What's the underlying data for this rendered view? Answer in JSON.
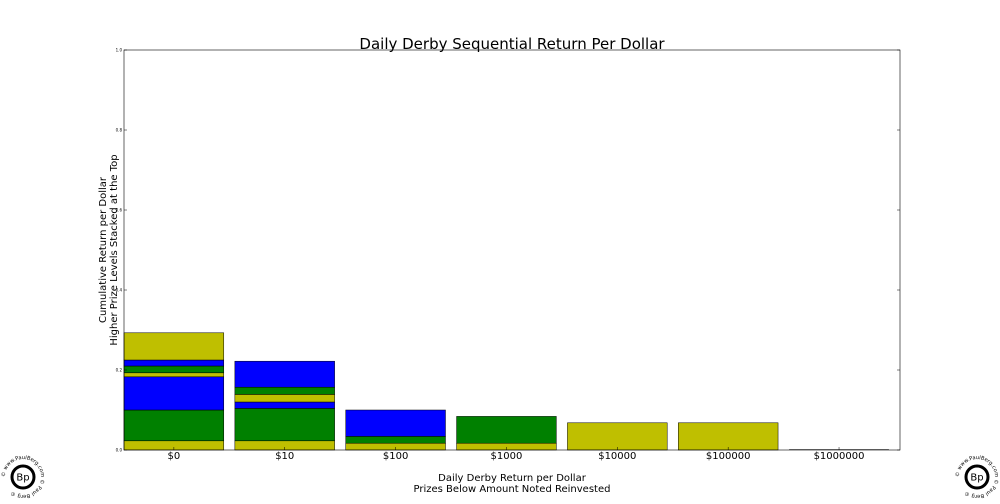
{
  "chart_data": {
    "type": "bar",
    "stacked": true,
    "title": "Daily Derby Sequential Return Per Dollar",
    "xlabel_lines": [
      "Daily Derby Return per Dollar",
      "Prizes Below Amount Noted Reinvested"
    ],
    "ylabel_lines": [
      "Cumulative Return per Dollar",
      "Higher Prize Levels Stacked at the Top"
    ],
    "ylim": [
      0,
      1.0
    ],
    "yticks": [
      "0.0",
      "0.2",
      "0.4",
      "0.6",
      "0.8",
      "1.0"
    ],
    "ytick_values": [
      0,
      0.2,
      0.4,
      0.6,
      0.8,
      1.0
    ],
    "categories": [
      "$0",
      "$10",
      "$100",
      "$1000",
      "$10000",
      "$100000",
      "$1000000"
    ],
    "stacks": [
      [
        {
          "value": 0.023,
          "color": "#bfbf00"
        },
        {
          "value": 0.077,
          "color": "#008000"
        },
        {
          "value": 0.083,
          "color": "#0000ff"
        },
        {
          "value": 0.01,
          "color": "#bfbf00"
        },
        {
          "value": 0.017,
          "color": "#008000"
        },
        {
          "value": 0.015,
          "color": "#0000ff"
        },
        {
          "value": 0.068,
          "color": "#bfbf00"
        }
      ],
      [
        {
          "value": 0.023,
          "color": "#bfbf00"
        },
        {
          "value": 0.081,
          "color": "#008000"
        },
        {
          "value": 0.016,
          "color": "#0000ff"
        },
        {
          "value": 0.019,
          "color": "#bfbf00"
        },
        {
          "value": 0.018,
          "color": "#008000"
        },
        {
          "value": 0.065,
          "color": "#0000ff"
        }
      ],
      [
        {
          "value": 0.017,
          "color": "#bfbf00"
        },
        {
          "value": 0.017,
          "color": "#008000"
        },
        {
          "value": 0.066,
          "color": "#0000ff"
        }
      ],
      [
        {
          "value": 0.017,
          "color": "#bfbf00"
        },
        {
          "value": 0.067,
          "color": "#008000"
        }
      ],
      [
        {
          "value": 0.068,
          "color": "#bfbf00"
        }
      ],
      [
        {
          "value": 0.068,
          "color": "#bfbf00"
        }
      ],
      []
    ],
    "grid": false,
    "legend": "none"
  },
  "watermark": {
    "core_text": "Bp",
    "ring_text": "© www.PaulBerg.com © Paul Berg ©"
  }
}
